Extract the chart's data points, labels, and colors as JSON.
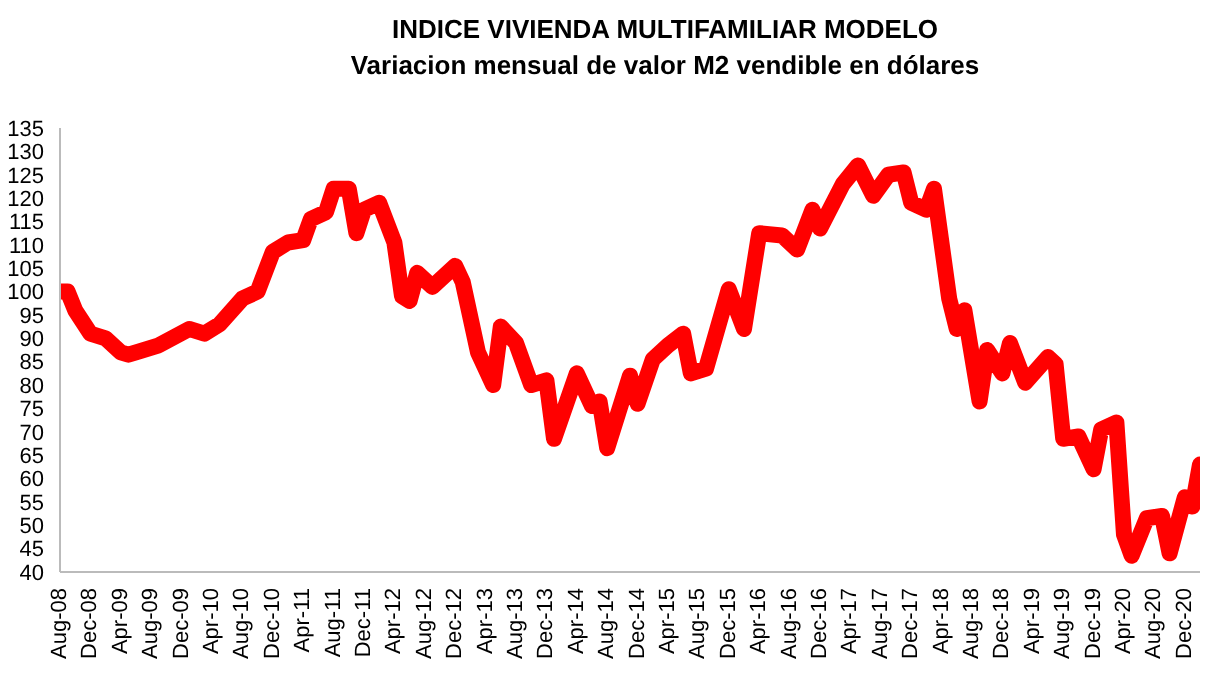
{
  "chart_data": {
    "type": "line",
    "title": "INDICE VIVIENDA MULTIFAMILIAR MODELO",
    "subtitle": "Variacion mensual de valor M2 vendible en dólares",
    "series": [
      {
        "color": "#ff0000",
        "x": [
          "2008-08",
          "2008-09",
          "2008-10",
          "2008-12",
          "2009-02",
          "2009-04",
          "2009-05",
          "2009-06",
          "2009-09",
          "2010-01",
          "2010-03",
          "2010-05",
          "2010-08",
          "2010-10",
          "2010-12",
          "2011-02",
          "2011-04",
          "2011-05",
          "2011-07",
          "2011-08",
          "2011-10",
          "2011-11",
          "2011-12",
          "2012-02",
          "2012-04",
          "2012-05",
          "2012-06",
          "2012-07",
          "2012-09",
          "2012-12",
          "2013-01",
          "2013-03",
          "2013-05",
          "2013-06",
          "2013-08",
          "2013-10",
          "2013-12",
          "2014-01",
          "2014-04",
          "2014-06",
          "2014-07",
          "2014-08",
          "2014-11",
          "2014-12",
          "2015-02",
          "2015-04",
          "2015-06",
          "2015-07",
          "2015-09",
          "2015-12",
          "2016-02",
          "2016-04",
          "2016-07",
          "2016-09",
          "2016-11",
          "2016-12",
          "2017-03",
          "2017-05",
          "2017-07",
          "2017-09",
          "2017-11",
          "2017-12",
          "2018-02",
          "2018-03",
          "2018-05",
          "2018-06",
          "2018-07",
          "2018-09",
          "2018-10",
          "2018-12",
          "2019-01",
          "2019-03",
          "2019-06",
          "2019-07",
          "2019-08",
          "2019-10",
          "2019-12",
          "2020-01",
          "2020-03",
          "2020-04",
          "2020-05",
          "2020-07",
          "2020-09",
          "2020-10",
          "2020-12",
          "2021-01",
          "2021-02"
        ],
        "values": [
          100,
          100,
          96,
          91,
          90,
          87,
          86.5,
          87,
          88.5,
          92,
          91,
          93,
          98.5,
          100,
          108.5,
          110.5,
          111,
          115.5,
          117,
          122,
          122,
          112.5,
          117.5,
          119,
          110.5,
          99,
          98,
          104,
          101,
          105.5,
          102,
          87,
          80,
          92.5,
          89,
          80,
          81,
          68.5,
          82.5,
          75.5,
          76.5,
          66.5,
          82,
          76,
          85.5,
          88.5,
          91,
          82.5,
          83.5,
          100.5,
          92,
          112.5,
          112,
          109,
          117.5,
          113.5,
          123,
          127,
          120.5,
          125,
          125.5,
          119,
          117.5,
          122,
          98.5,
          92,
          96,
          76.5,
          87.5,
          82.5,
          89,
          80.5,
          86,
          84.5,
          68.5,
          69,
          62,
          70.5,
          72,
          48,
          43.5,
          51.5,
          52,
          44,
          56,
          54,
          63
        ]
      }
    ],
    "xlim": [
      "2008-08",
      "2021-02"
    ],
    "xticks": [
      {
        "value": "2008-08",
        "label": "Aug-08"
      },
      {
        "value": "2008-12",
        "label": "Dec-08"
      },
      {
        "value": "2009-04",
        "label": "Apr-09"
      },
      {
        "value": "2009-08",
        "label": "Aug-09"
      },
      {
        "value": "2009-12",
        "label": "Dec-09"
      },
      {
        "value": "2010-04",
        "label": "Apr-10"
      },
      {
        "value": "2010-08",
        "label": "Aug-10"
      },
      {
        "value": "2010-12",
        "label": "Dec-10"
      },
      {
        "value": "2011-04",
        "label": "Apr-11"
      },
      {
        "value": "2011-08",
        "label": "Aug-11"
      },
      {
        "value": "2011-12",
        "label": "Dec-11"
      },
      {
        "value": "2012-04",
        "label": "Apr-12"
      },
      {
        "value": "2012-08",
        "label": "Aug-12"
      },
      {
        "value": "2012-12",
        "label": "Dec-12"
      },
      {
        "value": "2013-04",
        "label": "Apr-13"
      },
      {
        "value": "2013-08",
        "label": "Aug-13"
      },
      {
        "value": "2013-12",
        "label": "Dec-13"
      },
      {
        "value": "2014-04",
        "label": "Apr-14"
      },
      {
        "value": "2014-08",
        "label": "Aug-14"
      },
      {
        "value": "2014-12",
        "label": "Dec-14"
      },
      {
        "value": "2015-04",
        "label": "Apr-15"
      },
      {
        "value": "2015-08",
        "label": "Aug-15"
      },
      {
        "value": "2015-12",
        "label": "Dec-15"
      },
      {
        "value": "2016-04",
        "label": "Apr-16"
      },
      {
        "value": "2016-08",
        "label": "Aug-16"
      },
      {
        "value": "2016-12",
        "label": "Dec-16"
      },
      {
        "value": "2017-04",
        "label": "Apr-17"
      },
      {
        "value": "2017-08",
        "label": "Aug-17"
      },
      {
        "value": "2017-12",
        "label": "Dec-17"
      },
      {
        "value": "2018-04",
        "label": "Apr-18"
      },
      {
        "value": "2018-08",
        "label": "Aug-18"
      },
      {
        "value": "2018-12",
        "label": "Dec-18"
      },
      {
        "value": "2019-04",
        "label": "Apr-19"
      },
      {
        "value": "2019-08",
        "label": "Aug-19"
      },
      {
        "value": "2019-12",
        "label": "Dec-19"
      },
      {
        "value": "2020-04",
        "label": "Apr-20"
      },
      {
        "value": "2020-08",
        "label": "Aug-20"
      },
      {
        "value": "2020-12",
        "label": "Dec-20"
      }
    ],
    "ylim": [
      40,
      135
    ],
    "yticks": [
      40,
      45,
      50,
      55,
      60,
      65,
      70,
      75,
      80,
      85,
      90,
      95,
      100,
      105,
      110,
      115,
      120,
      125,
      130,
      135
    ],
    "grid": false,
    "legend": false,
    "marker": "none",
    "line_style": "solid"
  }
}
